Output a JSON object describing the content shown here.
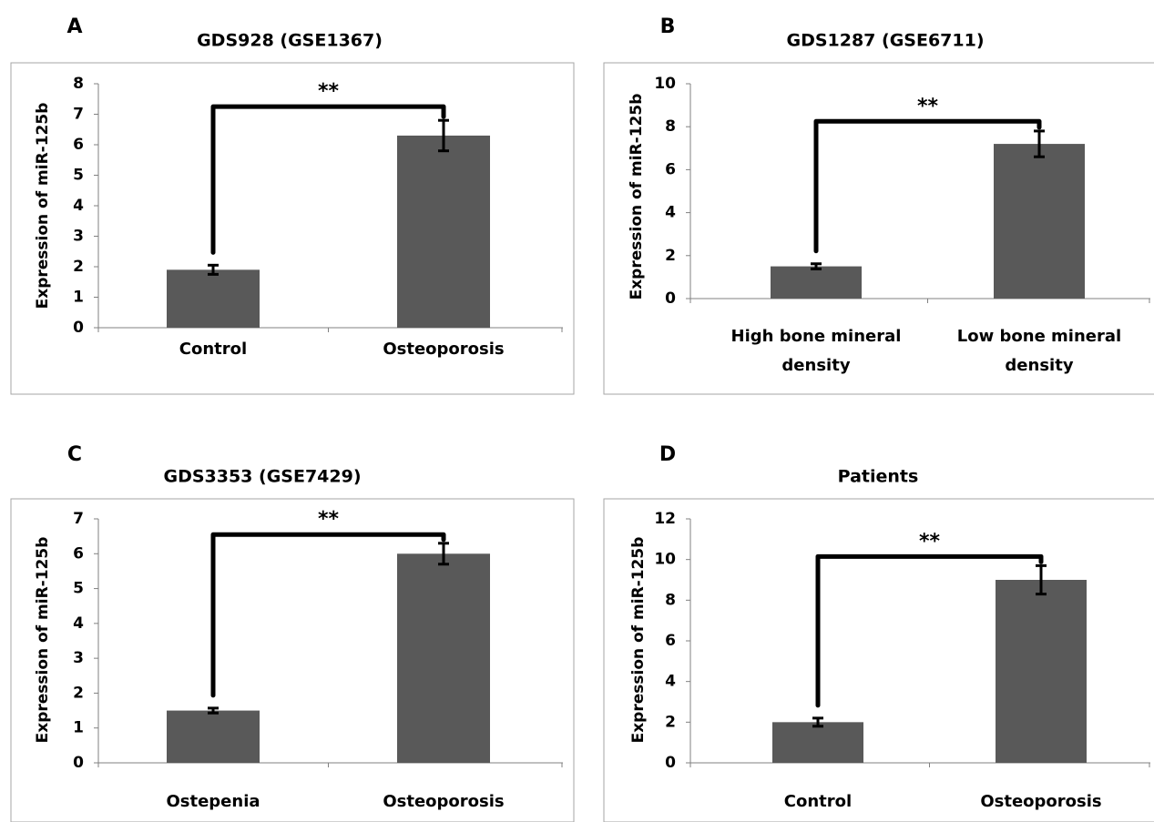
{
  "figure": {
    "panels": [
      {
        "letter": "A"
      },
      {
        "letter": "B"
      },
      {
        "letter": "C"
      },
      {
        "letter": "D"
      }
    ]
  },
  "chart_data": [
    {
      "panel": "A",
      "type": "bar",
      "title": "GDS928 (GSE1367)",
      "ylabel": "Expression of miR-125b",
      "xlabel": "",
      "categories": [
        [
          "Control"
        ],
        [
          "Osteoporosis"
        ]
      ],
      "values": [
        1.9,
        6.3
      ],
      "errors": [
        0.15,
        0.5
      ],
      "ylim": [
        0,
        8
      ],
      "yticks": [
        0,
        1,
        2,
        3,
        4,
        5,
        6,
        7,
        8
      ],
      "significance": {
        "label": "**",
        "from": 0,
        "to": 1,
        "bracket_y": 7.25
      },
      "bar_color": "#595959",
      "grid": false,
      "legend": "none"
    },
    {
      "panel": "B",
      "type": "bar",
      "title": "GDS1287 (GSE6711)",
      "ylabel": "Expression of miR-125b",
      "xlabel": "",
      "categories": [
        [
          "High bone mineral",
          "density"
        ],
        [
          "Low bone mineral",
          "density"
        ]
      ],
      "values": [
        1.5,
        7.2
      ],
      "errors": [
        0.12,
        0.6
      ],
      "ylim": [
        0,
        10
      ],
      "yticks": [
        0,
        2,
        4,
        6,
        8,
        10
      ],
      "significance": {
        "label": "**",
        "from": 0,
        "to": 1,
        "bracket_y": 8.25
      },
      "bar_color": "#595959",
      "grid": false,
      "legend": "none"
    },
    {
      "panel": "C",
      "type": "bar",
      "title": "GDS3353 (GSE7429)",
      "ylabel": "Expression of miR-125b",
      "xlabel": "",
      "categories": [
        [
          "Ostepenia"
        ],
        [
          "Osteoporosis"
        ]
      ],
      "values": [
        1.5,
        6.0
      ],
      "errors": [
        0.07,
        0.3
      ],
      "ylim": [
        0,
        7
      ],
      "yticks": [
        0,
        1,
        2,
        3,
        4,
        5,
        6,
        7
      ],
      "significance": {
        "label": "**",
        "from": 0,
        "to": 1,
        "bracket_y": 6.55
      },
      "bar_color": "#595959",
      "grid": false,
      "legend": "none"
    },
    {
      "panel": "D",
      "type": "bar",
      "title": "Patients",
      "ylabel": "Expression of miR-125b",
      "xlabel": "",
      "categories": [
        [
          "Control"
        ],
        [
          "Osteoporosis"
        ]
      ],
      "values": [
        2.0,
        9.0
      ],
      "errors": [
        0.2,
        0.7
      ],
      "ylim": [
        0,
        12
      ],
      "yticks": [
        0,
        2,
        4,
        6,
        8,
        10,
        12
      ],
      "significance": {
        "label": "**",
        "from": 0,
        "to": 1,
        "bracket_y": 10.15
      },
      "bar_color": "#595959",
      "grid": false,
      "legend": "none"
    }
  ]
}
